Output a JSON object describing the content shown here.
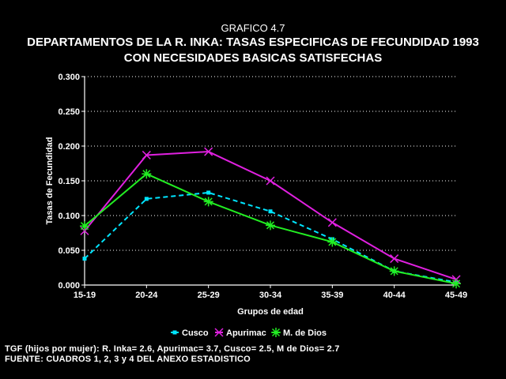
{
  "header": {
    "supertitle": "GRAFICO 4.7",
    "title_line1": "DEPARTAMENTOS DE LA R. INKA: TASAS ESPECIFICAS DE FECUNDIDAD 1993",
    "title_line2": "CON NECESIDADES BASICAS SATISFECHAS"
  },
  "chart_data": {
    "type": "line",
    "xlabel": "Grupos de edad",
    "ylabel": "Tasas de Fecundidad",
    "categories": [
      "15-19",
      "20-24",
      "25-29",
      "30-34",
      "35-39",
      "40-44",
      "45-49"
    ],
    "ylim": [
      0,
      0.3
    ],
    "yticks": [
      "0.000",
      "0.050",
      "0.100",
      "0.150",
      "0.200",
      "0.250",
      "0.300"
    ],
    "grid": "horizontal dotted",
    "legend_position": "bottom",
    "series": [
      {
        "name": "Cusco",
        "color": "#00e5ff",
        "dash": "dashed",
        "marker": "square",
        "values": [
          0.038,
          0.124,
          0.133,
          0.106,
          0.066,
          0.02,
          0.004
        ]
      },
      {
        "name": "Apurimac",
        "color": "#e020e0",
        "dash": "solid",
        "marker": "x",
        "values": [
          0.078,
          0.187,
          0.192,
          0.15,
          0.09,
          0.038,
          0.008
        ]
      },
      {
        "name": "M. de Dios",
        "color": "#22ee22",
        "dash": "solid",
        "marker": "star",
        "values": [
          0.085,
          0.16,
          0.12,
          0.086,
          0.062,
          0.02,
          0.002
        ]
      }
    ]
  },
  "footer": {
    "note": "TGF (hijos por mujer): R. Inka= 2.6, Apurimac= 3.7, Cusco= 2.5, M de Dios= 2.7",
    "source": "FUENTE: CUADROS 1, 2, 3 y 4 DEL ANEXO ESTADISTICO"
  }
}
